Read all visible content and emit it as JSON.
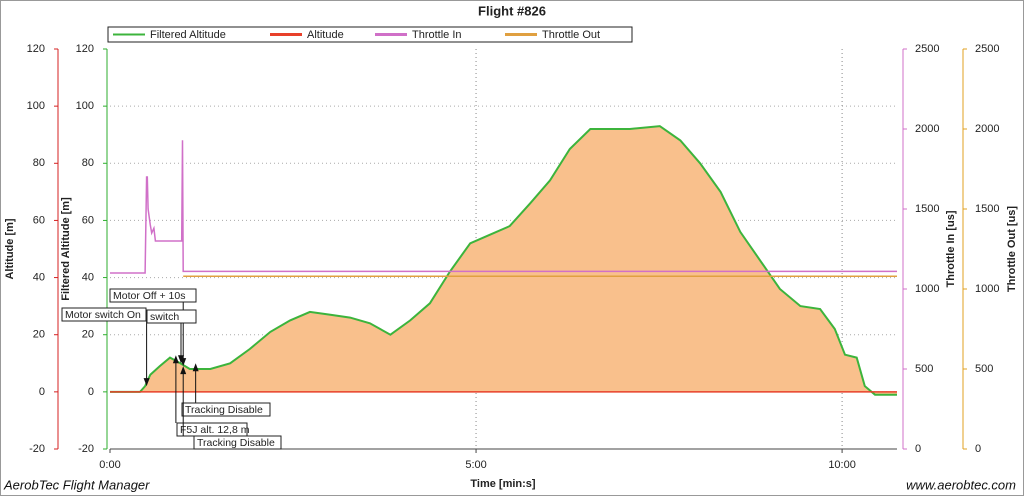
{
  "chart_data": {
    "type": "line",
    "title": "Flight #826",
    "x_label": "Time [min:s]",
    "xlim": [
      0,
      10.75
    ],
    "xticks": [
      {
        "value": 0,
        "label": "0:00"
      },
      {
        "value": 5,
        "label": "5:00"
      },
      {
        "value": 10,
        "label": "10:00"
      }
    ],
    "grid": true,
    "y_axes": [
      {
        "label": "Altitude [m]",
        "lim": [
          -20,
          120
        ],
        "ticks": [
          -20,
          0,
          20,
          40,
          60,
          80,
          100,
          120
        ],
        "color": "#d42020"
      },
      {
        "label": "Filtered Altitude [m]",
        "lim": [
          -20,
          120
        ],
        "ticks": [
          -20,
          0,
          20,
          40,
          60,
          80,
          100,
          120
        ],
        "color": "#2eae2e"
      },
      {
        "label": "Throttle In [us]",
        "lim": [
          0,
          2500
        ],
        "ticks": [
          0,
          500,
          1000,
          1500,
          2000,
          2500
        ],
        "color": "#d070c8"
      },
      {
        "label": "Throttle Out [us]",
        "lim": [
          0,
          2500
        ],
        "ticks": [
          0,
          500,
          1000,
          1500,
          2000,
          2500
        ],
        "color": "#e0a020"
      }
    ],
    "series": [
      {
        "name": "Filtered Altitude",
        "color": "#3cb43c",
        "fill": "#f9c08c",
        "axis": 1,
        "x": [
          0,
          0.41,
          0.48,
          0.55,
          0.68,
          0.82,
          0.96,
          1.09,
          1.37,
          1.64,
          1.91,
          2.19,
          2.46,
          2.73,
          3.01,
          3.28,
          3.55,
          3.83,
          4.1,
          4.37,
          4.64,
          4.92,
          5.19,
          5.46,
          5.74,
          6.01,
          6.28,
          6.56,
          6.83,
          7.1,
          7.51,
          7.79,
          8.06,
          8.34,
          8.61,
          8.88,
          9.15,
          9.43,
          9.7,
          9.9,
          10.04,
          10.2,
          10.31,
          10.45,
          10.75
        ],
        "values": [
          0,
          0,
          2,
          6,
          9,
          12,
          10,
          8,
          8,
          10,
          15,
          21,
          25,
          28,
          27,
          26,
          24,
          20,
          25,
          31,
          42,
          52,
          55,
          58,
          66,
          74,
          85,
          92,
          92,
          92,
          93,
          88,
          80,
          70,
          56,
          46,
          36,
          30,
          29,
          22,
          13,
          12,
          2,
          -1,
          -1
        ]
      },
      {
        "name": "Altitude",
        "color": "#e8402a",
        "axis": 0,
        "x": [
          0,
          10.75
        ],
        "values": [
          0,
          0
        ]
      },
      {
        "name": "Throttle In",
        "color": "#d070c8",
        "axis": 2,
        "x": [
          0,
          0.48,
          0.5,
          0.51,
          0.52,
          0.55,
          0.57,
          0.6,
          0.62,
          0.65,
          0.98,
          0.99,
          1.0,
          10.75
        ],
        "values": [
          1100,
          1100,
          1700,
          1700,
          1500,
          1400,
          1350,
          1380,
          1300,
          1300,
          1300,
          1930,
          1110,
          1110
        ]
      },
      {
        "name": "Throttle Out",
        "color": "#e0a040",
        "axis": 3,
        "x": [
          1.0,
          10.75
        ],
        "values": [
          1080,
          1080
        ]
      }
    ],
    "annotations": [
      {
        "text": "Motor Off + 10s",
        "x": 1.0,
        "y": 9
      },
      {
        "text": "Motor switch On",
        "x": 0.5,
        "y": 2
      },
      {
        "text": "switch",
        "x": 0.97,
        "y": 10
      },
      {
        "text": "Tracking Disable",
        "x": 1.17,
        "y": 10
      },
      {
        "text": "F5J alt. 12,8 m",
        "x": 0.9,
        "y": 12.8
      },
      {
        "text": "Tracking Disable",
        "x": 1.0,
        "y": 9
      }
    ],
    "footer_left": "AerobTec Flight Manager",
    "footer_right": "www.aerobtec.com"
  }
}
